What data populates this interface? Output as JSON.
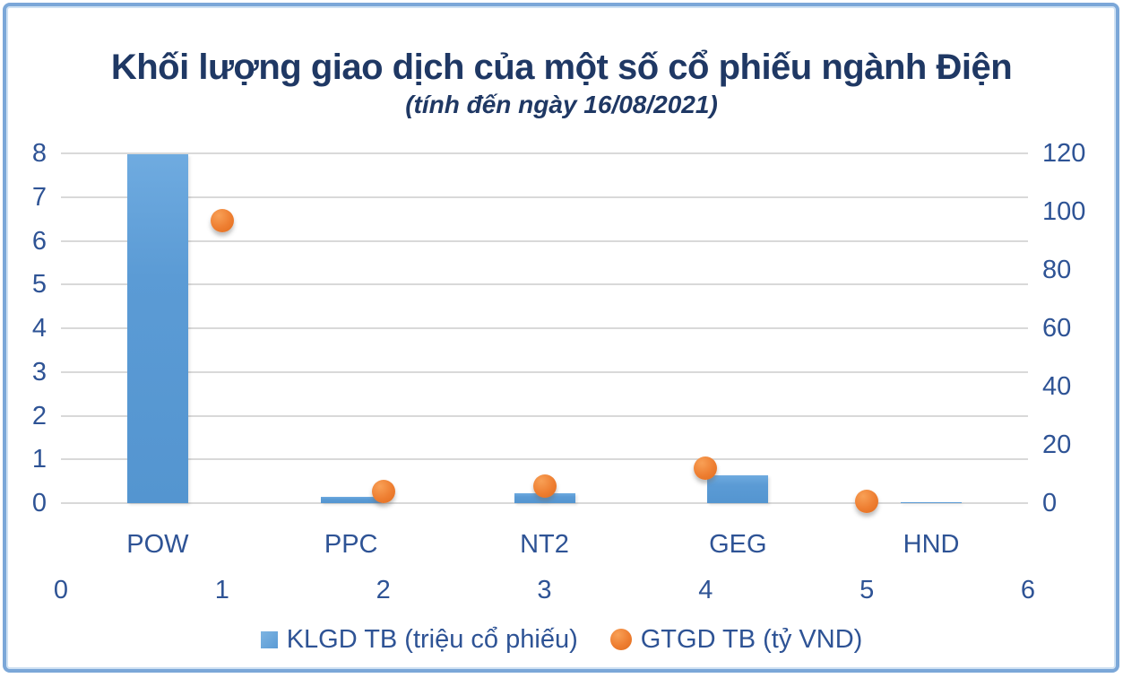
{
  "title": "Khối lượng giao dịch của một số cổ phiếu ngành Điện",
  "subtitle": "(tính đến ngày 16/08/2021)",
  "colors": {
    "bar": "#5B9BD5",
    "dot": "#ED7D31",
    "title_text": "#1F3864",
    "axis_text": "#2E5395",
    "gridline": "#D9D9D9",
    "frame_border": "#7BA7D8",
    "background": "#FFFFFF"
  },
  "chart_data": {
    "type": "combo bar + scatter (dual axis)",
    "title": "Khối lượng giao dịch của một số cổ phiếu ngành Điện",
    "subtitle": "(tính đến ngày 16/08/2021)",
    "categories": [
      "POW",
      "PPC",
      "NT2",
      "GEG",
      "HND"
    ],
    "series": [
      {
        "name": "KLGD TB (triệu cổ phiếu)",
        "type": "bar",
        "axis": "left",
        "values": [
          7.97,
          0.15,
          0.23,
          0.64,
          0.02
        ]
      },
      {
        "name": "GTGD TB (tỷ VND)",
        "type": "scatter",
        "axis": "right",
        "x": [
          1,
          2,
          3,
          4,
          5
        ],
        "values": [
          97,
          4,
          6,
          12,
          0.5
        ]
      }
    ],
    "left_axis": {
      "min": 0,
      "max": 8,
      "step": 1,
      "ticks": [
        8,
        7,
        6,
        5,
        4,
        3,
        2,
        1,
        0
      ]
    },
    "right_axis": {
      "min": 0,
      "max": 120,
      "step": 20,
      "ticks": [
        120,
        100,
        80,
        60,
        40,
        20,
        0
      ]
    },
    "secondary_x_axis": {
      "min": 0,
      "max": 6,
      "ticks": [
        0,
        1,
        2,
        3,
        4,
        5,
        6
      ]
    },
    "grid": "horizontal gridlines on",
    "legend_position": "bottom"
  },
  "legend": [
    {
      "label": "KLGD TB (triệu cổ phiếu)",
      "marker": "square",
      "color": "#5B9BD5"
    },
    {
      "label": "GTGD TB (tỷ VND)",
      "marker": "circle",
      "color": "#ED7D31"
    }
  ]
}
